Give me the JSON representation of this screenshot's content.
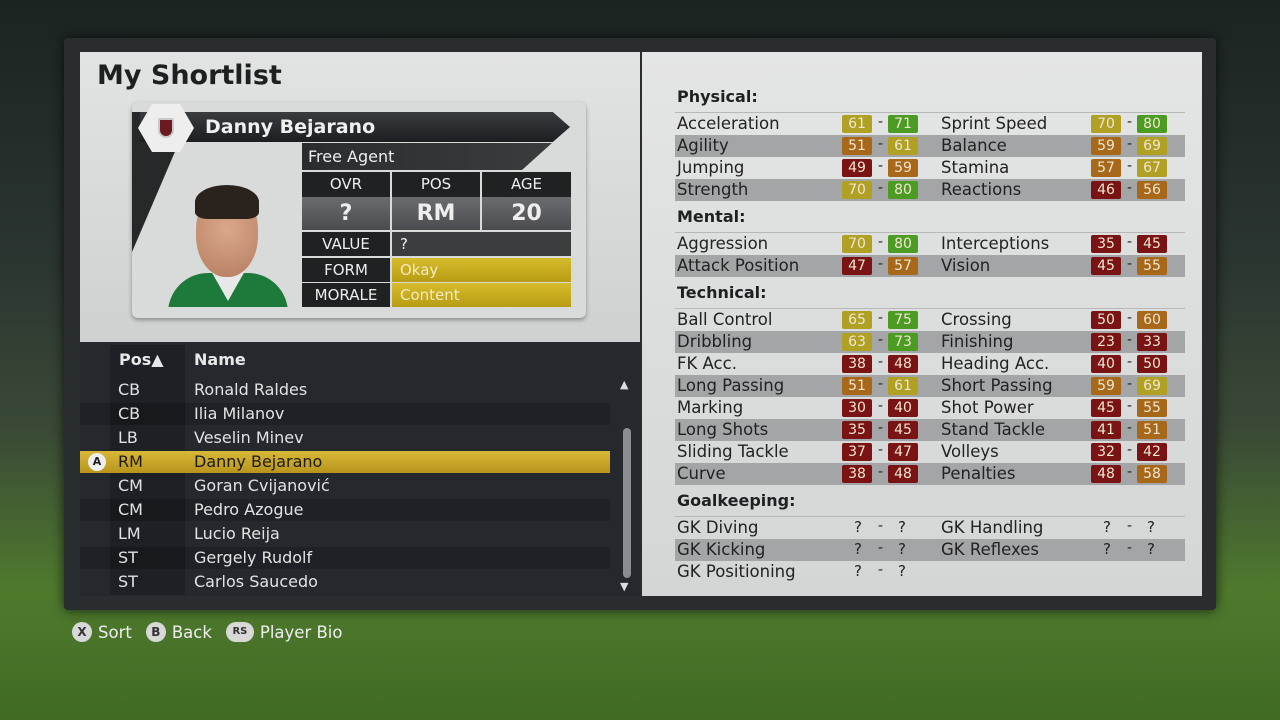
{
  "title": "My Shortlist",
  "player": {
    "name": "Danny Bejarano",
    "status": "Free Agent",
    "headers": {
      "ovr": "OVR",
      "pos": "POS",
      "age": "AGE"
    },
    "ovr": "?",
    "pos": "RM",
    "age": "20",
    "value_label": "VALUE",
    "value": "?",
    "form_label": "FORM",
    "form": "Okay",
    "morale_label": "MORALE",
    "morale": "Content",
    "highlight_color": "#c8a820"
  },
  "list": {
    "headers": {
      "pos": "Pos",
      "sort_indicator": "▲",
      "name": "Name"
    },
    "select_button": "A",
    "rows": [
      {
        "pos": "CB",
        "name": "Ronald Raldes"
      },
      {
        "pos": "CB",
        "name": "Ilia Milanov"
      },
      {
        "pos": "LB",
        "name": "Veselin Minev"
      },
      {
        "pos": "RM",
        "name": "Danny Bejarano",
        "selected": true
      },
      {
        "pos": "CM",
        "name": "Goran Cvijanović"
      },
      {
        "pos": "CM",
        "name": "Pedro Azogue"
      },
      {
        "pos": "LM",
        "name": "Lucio Reija"
      },
      {
        "pos": "ST",
        "name": "Gergely Rudolf"
      },
      {
        "pos": "ST",
        "name": "Carlos Saucedo"
      }
    ]
  },
  "rating_colors": {
    "low": "#7a1414",
    "mid": "#a8681a",
    "good": "#b0a024",
    "high": "#4c9c24"
  },
  "stats": {
    "physical": {
      "title": "Physical:",
      "rows": [
        [
          [
            "Acceleration",
            "61",
            "71"
          ],
          [
            "Sprint Speed",
            "70",
            "80"
          ]
        ],
        [
          [
            "Agility",
            "51",
            "61"
          ],
          [
            "Balance",
            "59",
            "69"
          ]
        ],
        [
          [
            "Jumping",
            "49",
            "59"
          ],
          [
            "Stamina",
            "57",
            "67"
          ]
        ],
        [
          [
            "Strength",
            "70",
            "80"
          ],
          [
            "Reactions",
            "46",
            "56"
          ]
        ]
      ]
    },
    "mental": {
      "title": "Mental:",
      "rows": [
        [
          [
            "Aggression",
            "70",
            "80"
          ],
          [
            "Interceptions",
            "35",
            "45"
          ]
        ],
        [
          [
            "Attack Position",
            "47",
            "57"
          ],
          [
            "Vision",
            "45",
            "55"
          ]
        ]
      ]
    },
    "technical": {
      "title": "Technical:",
      "rows": [
        [
          [
            "Ball Control",
            "65",
            "75"
          ],
          [
            "Crossing",
            "50",
            "60"
          ]
        ],
        [
          [
            "Dribbling",
            "63",
            "73"
          ],
          [
            "Finishing",
            "23",
            "33"
          ]
        ],
        [
          [
            "FK Acc.",
            "38",
            "48"
          ],
          [
            "Heading Acc.",
            "40",
            "50"
          ]
        ],
        [
          [
            "Long Passing",
            "51",
            "61"
          ],
          [
            "Short Passing",
            "59",
            "69"
          ]
        ],
        [
          [
            "Marking",
            "30",
            "40"
          ],
          [
            "Shot Power",
            "45",
            "55"
          ]
        ],
        [
          [
            "Long Shots",
            "35",
            "45"
          ],
          [
            "Stand Tackle",
            "41",
            "51"
          ]
        ],
        [
          [
            "Sliding Tackle",
            "37",
            "47"
          ],
          [
            "Volleys",
            "32",
            "42"
          ]
        ],
        [
          [
            "Curve",
            "38",
            "48"
          ],
          [
            "Penalties",
            "48",
            "58"
          ]
        ]
      ]
    },
    "goalkeeping": {
      "title": "Goalkeeping:",
      "rows": [
        [
          [
            "GK Diving",
            "?",
            "?"
          ],
          [
            "GK Handling",
            "?",
            "?"
          ]
        ],
        [
          [
            "GK Kicking",
            "?",
            "?"
          ],
          [
            "GK Reflexes",
            "?",
            "?"
          ]
        ],
        [
          [
            "GK Positioning",
            "?",
            "?"
          ]
        ]
      ]
    },
    "separator": "-"
  },
  "footer": [
    {
      "button": "X",
      "label": "Sort"
    },
    {
      "button": "B",
      "label": "Back"
    },
    {
      "button": "RS",
      "label": "Player Bio"
    }
  ]
}
